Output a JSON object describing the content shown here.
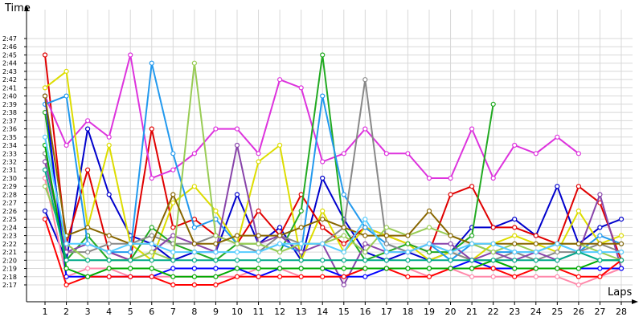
{
  "chart_data": {
    "type": "line",
    "xlabel": "Laps",
    "ylabel": "Time",
    "grid": true,
    "x": [
      1,
      2,
      3,
      4,
      5,
      6,
      7,
      8,
      9,
      10,
      11,
      12,
      13,
      14,
      15,
      16,
      17,
      18,
      19,
      20,
      21,
      22,
      23,
      24,
      25,
      26,
      27,
      28
    ],
    "xlim": [
      0.5,
      28.2
    ],
    "ylim_seconds": [
      136,
      168
    ],
    "y_ticks": [
      "2:17",
      "2:18",
      "2:19",
      "2:20",
      "2:21",
      "2:22",
      "2:23",
      "2:24",
      "2:25",
      "2:26",
      "2:27",
      "2:28",
      "2:29",
      "2:30",
      "2:31",
      "2:32",
      "2:33",
      "2:34",
      "2:35",
      "2:36",
      "2:37",
      "2:38",
      "2:39",
      "2:40",
      "2:41",
      "2:42",
      "2:43",
      "2:44",
      "2:45",
      "2:46",
      "2:47"
    ],
    "series": [
      {
        "color": "#0000cc",
        "values": [
          "2:26",
          "2:20",
          "2:36",
          "2:28",
          "2:23",
          "2:22",
          "2:20",
          "2:21",
          "2:21",
          "2:28",
          "2:22",
          "2:24",
          "2:20",
          "2:30",
          "2:25",
          "2:21",
          "2:20",
          "2:21",
          "2:20",
          "2:21",
          "2:24",
          "2:24",
          "2:25",
          "2:23",
          "2:29",
          "2:22",
          "2:24",
          "2:25"
        ]
      },
      {
        "color": "#e00000",
        "values": [
          "2:45",
          "2:22",
          "2:31",
          "2:21",
          "2:20",
          "2:36",
          "2:24",
          "2:25",
          "2:23",
          "2:22",
          "2:26",
          "2:23",
          "2:28",
          "2:24",
          "2:22",
          "2:24",
          "2:23",
          "2:22",
          "2:21",
          "2:28",
          "2:29",
          "2:24",
          "2:24",
          "2:23",
          "2:22",
          "2:29",
          "2:27",
          "2:20"
        ]
      },
      {
        "color": "#dd33dd",
        "values": [
          "2:40",
          "2:34",
          "2:37",
          "2:35",
          "2:45",
          "2:30",
          "2:31",
          "2:33",
          "2:36",
          "2:36",
          "2:33",
          "2:42",
          "2:41",
          "2:32",
          "2:33",
          "2:36",
          "2:33",
          "2:33",
          "2:30",
          "2:30",
          "2:36",
          "2:30",
          "2:34",
          "2:33",
          "2:35",
          "2:33",
          null,
          null
        ]
      },
      {
        "color": "#dddd00",
        "values": [
          "2:41",
          "2:43",
          "2:24",
          "2:34",
          "2:22",
          "2:20",
          "2:27",
          "2:29",
          "2:26",
          "2:22",
          "2:32",
          "2:34",
          "2:20",
          "2:26",
          "2:21",
          "2:24",
          "2:23",
          "2:22",
          "2:20",
          "2:21",
          "2:20",
          "2:22",
          "2:23",
          "2:22",
          "2:21",
          "2:26",
          "2:22",
          "2:23"
        ]
      },
      {
        "color": "#22aa22",
        "values": [
          "2:38",
          "2:20",
          "2:23",
          "2:20",
          "2:20",
          "2:24",
          "2:22",
          "2:21",
          "2:20",
          "2:22",
          "2:22",
          "2:21",
          "2:26",
          "2:45",
          "2:24",
          "2:20",
          "2:21",
          "2:22",
          "2:21",
          "2:21",
          "2:23",
          "2:39",
          null,
          null,
          null,
          null,
          null,
          null
        ]
      },
      {
        "color": "#2299ee",
        "values": [
          "2:39",
          "2:40",
          "2:22",
          "2:21",
          "2:21",
          "2:44",
          "2:33",
          "2:24",
          "2:25",
          "2:22",
          "2:21",
          "2:22",
          "2:21",
          "2:40",
          "2:28",
          "2:24",
          "2:22",
          "2:21",
          "2:22",
          "2:20",
          "2:22",
          "2:21",
          "2:21",
          "2:21",
          "2:22",
          "2:21",
          "2:23",
          "2:22"
        ]
      },
      {
        "color": "#888888",
        "values": [
          "2:33",
          "2:21",
          "2:21",
          "2:22",
          "2:22",
          "2:23",
          "2:22",
          "2:22",
          "2:23",
          "2:22",
          "2:21",
          "2:23",
          "2:22",
          "2:22",
          "2:24",
          "2:42",
          "2:22",
          "2:21",
          "2:22",
          "2:21",
          "2:20",
          "2:20",
          "2:21",
          "2:20",
          "2:21",
          "2:21",
          "2:22",
          "2:21"
        ]
      },
      {
        "color": "#ff88aa",
        "values": [
          "2:30",
          "2:18",
          "2:19",
          "2:19",
          "2:18",
          "2:18",
          "2:18",
          "2:18",
          "2:18",
          "2:18",
          "2:19",
          "2:19",
          "2:18",
          "2:18",
          "2:18",
          "2:19",
          "2:19",
          "2:19",
          "2:18",
          "2:19",
          "2:18",
          "2:18",
          "2:18",
          "2:18",
          "2:18",
          "2:17",
          "2:18",
          "2:19"
        ]
      },
      {
        "color": "#8844aa",
        "values": [
          "2:32",
          "2:21",
          "2:22",
          "2:21",
          "2:20",
          "2:21",
          "2:23",
          "2:22",
          "2:21",
          "2:34",
          "2:22",
          "2:23",
          "2:21",
          "2:22",
          "2:17",
          "2:22",
          "2:21",
          "2:21",
          "2:22",
          "2:22",
          "2:20",
          "2:21",
          "2:20",
          "2:21",
          "2:20",
          "2:21",
          "2:28",
          "2:19"
        ]
      },
      {
        "color": "#99cc55",
        "values": [
          "2:29",
          "2:22",
          "2:20",
          "2:20",
          "2:20",
          "2:21",
          "2:20",
          "2:44",
          "2:23",
          "2:22",
          "2:22",
          "2:21",
          "2:22",
          "2:22",
          "2:23",
          "2:21",
          "2:24",
          "2:23",
          "2:24",
          "2:23",
          "2:22",
          "2:21",
          "2:22",
          "2:21",
          "2:22",
          "2:22",
          "2:21",
          "2:20"
        ]
      },
      {
        "color": "#0000ff",
        "values": [
          "2:40",
          "2:18",
          "2:18",
          "2:18",
          "2:18",
          "2:18",
          "2:19",
          "2:19",
          "2:19",
          "2:19",
          "2:18",
          "2:19",
          "2:19",
          "2:19",
          "2:18",
          "2:18",
          "2:19",
          "2:19",
          "2:19",
          "2:19",
          "2:20",
          "2:19",
          "2:19",
          "2:19",
          "2:19",
          "2:19",
          "2:19",
          "2:19"
        ]
      },
      {
        "color": "#ff0000",
        "values": [
          "2:25",
          "2:17",
          "2:18",
          "2:18",
          "2:18",
          "2:18",
          "2:17",
          "2:17",
          "2:17",
          "2:18",
          "2:18",
          "2:18",
          "2:18",
          "2:18",
          "2:18",
          "2:19",
          "2:19",
          "2:18",
          "2:18",
          "2:19",
          "2:19",
          "2:19",
          "2:18",
          "2:19",
          "2:19",
          "2:18",
          "2:18",
          "2:20"
        ]
      },
      {
        "color": "#00aa00",
        "values": [
          "2:34",
          "2:19",
          "2:18",
          "2:19",
          "2:19",
          "2:19",
          "2:18",
          "2:18",
          "2:18",
          "2:19",
          "2:19",
          "2:19",
          "2:19",
          "2:19",
          "2:19",
          "2:19",
          "2:19",
          "2:19",
          "2:19",
          "2:19",
          "2:19",
          "2:20",
          "2:19",
          "2:19",
          "2:19",
          "2:19",
          "2:20",
          "2:20"
        ]
      },
      {
        "color": "#886600",
        "values": [
          "2:40",
          "2:23",
          "2:24",
          "2:23",
          "2:22",
          "2:22",
          "2:28",
          "2:22",
          "2:22",
          "2:23",
          "2:23",
          "2:23",
          "2:24",
          "2:25",
          "2:24",
          "2:23",
          "2:23",
          "2:23",
          "2:26",
          "2:23",
          "2:22",
          "2:22",
          "2:22",
          "2:22",
          "2:22",
          "2:22",
          "2:22",
          "2:22"
        ]
      },
      {
        "color": "#55ccff",
        "values": [
          "2:35",
          "2:22",
          "2:22",
          "2:21",
          "2:22",
          "2:22",
          "2:21",
          "2:21",
          "2:21",
          "2:21",
          "2:21",
          "2:22",
          "2:22",
          "2:22",
          "2:21",
          "2:25",
          "2:21",
          "2:21",
          "2:22",
          "2:21",
          "2:22",
          "2:22",
          "2:21",
          "2:21",
          "2:22",
          "2:21",
          "2:21",
          "2:21"
        ]
      },
      {
        "color": "#00aa88",
        "values": [
          "2:31",
          "2:20",
          "2:20",
          "2:20",
          "2:20",
          "2:20",
          "2:20",
          "2:20",
          "2:20",
          "2:20",
          "2:20",
          "2:20",
          "2:20",
          "2:20",
          "2:20",
          "2:20",
          "2:20",
          "2:20",
          "2:20",
          "2:20",
          "2:20",
          "2:20",
          "2:20",
          "2:20",
          "2:20",
          "2:21",
          "2:20",
          "2:20"
        ]
      }
    ]
  }
}
